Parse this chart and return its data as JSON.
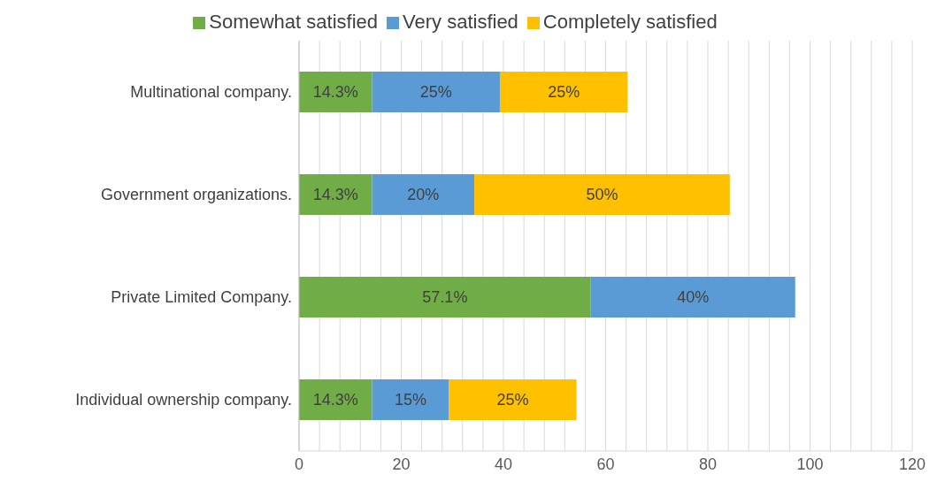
{
  "chart_data": {
    "type": "bar",
    "orientation": "horizontal",
    "stacked": true,
    "categories": [
      "Multinational company.",
      "Government organizations.",
      "Private Limited Company.",
      "Individual ownership company."
    ],
    "series": [
      {
        "name": "Somewhat satisfied",
        "color": "#70ad47",
        "values": [
          14.3,
          14.3,
          57.1,
          14.3
        ],
        "value_labels": [
          "14.3%",
          "14.3%",
          "57.1%",
          "14.3%"
        ]
      },
      {
        "name": "Very satisfied",
        "color": "#5b9bd5",
        "values": [
          25,
          20,
          40,
          15
        ],
        "value_labels": [
          "25%",
          "20%",
          "40%",
          "15%"
        ]
      },
      {
        "name": "Completely satisfied",
        "color": "#ffc000",
        "values": [
          25,
          50,
          null,
          25
        ],
        "value_labels": [
          "25%",
          "50%",
          null,
          "25%"
        ]
      }
    ],
    "xlim": [
      0,
      120
    ],
    "xticks": [
      0,
      {
        "value": 4,
        "label": null
      },
      {
        "value": 8,
        "label": null
      },
      {
        "value": 12,
        "label": null
      },
      {
        "value": 16,
        "label": null
      },
      20,
      {
        "value": 24,
        "label": null
      },
      {
        "value": 28,
        "label": null
      },
      {
        "value": 32,
        "label": null
      },
      {
        "value": 36,
        "label": null
      },
      40,
      {
        "value": 44,
        "label": null
      },
      {
        "value": 48,
        "label": null
      },
      {
        "value": 52,
        "label": null
      },
      {
        "value": 56,
        "label": null
      },
      60,
      {
        "value": 64,
        "label": null
      },
      {
        "value": 68,
        "label": null
      },
      {
        "value": 72,
        "label": null
      },
      {
        "value": 76,
        "label": null
      },
      80,
      {
        "value": 84,
        "label": null
      },
      {
        "value": 88,
        "label": null
      },
      {
        "value": 92,
        "label": null
      },
      {
        "value": 96,
        "label": null
      },
      100,
      {
        "value": 104,
        "label": null
      },
      {
        "value": 108,
        "label": null
      },
      {
        "value": 112,
        "label": null
      },
      {
        "value": 116,
        "label": null
      },
      120
    ],
    "grid": "x",
    "legend": "top"
  }
}
